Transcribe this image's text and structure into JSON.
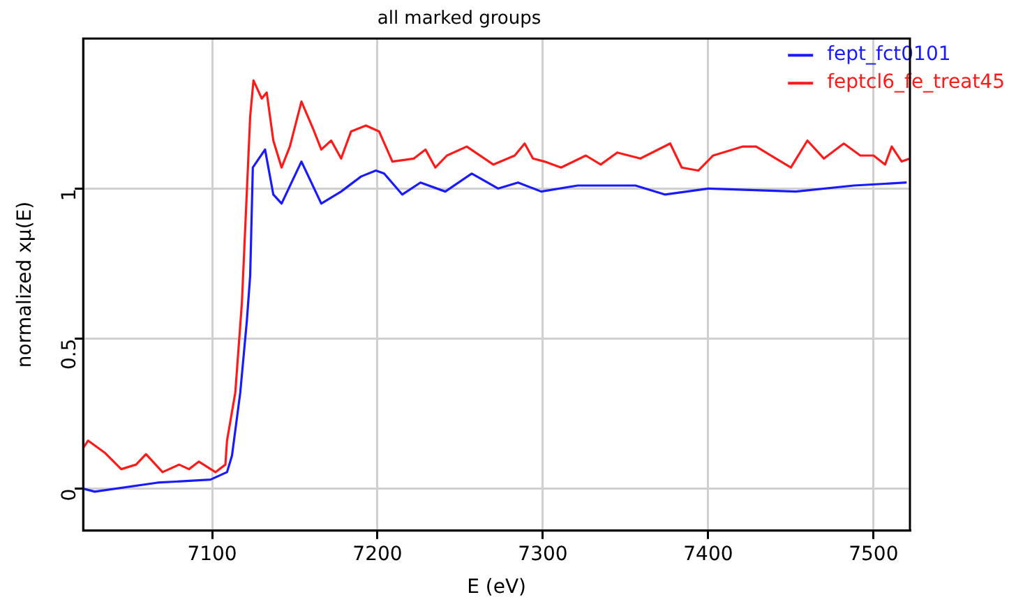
{
  "chart_data": {
    "type": "line",
    "title": "all marked groups",
    "xlabel": "E (eV)",
    "ylabel": "normalized xμ(E)",
    "xlim": [
      7022,
      7522
    ],
    "xticks": [
      7100,
      7200,
      7300,
      7400,
      7500
    ],
    "ylim": [
      -0.14,
      1.5
    ],
    "yticks": [
      0,
      0.5,
      1
    ],
    "grid": true,
    "legend": "top right",
    "marker": "none",
    "line_style": "solid",
    "series": [
      {
        "name": "fept_fct0101",
        "color": "#1a1aff",
        "x": [
          7022,
          7029,
          7067,
          7099,
          7109,
          7112,
          7117,
          7121,
          7123,
          7124.6,
          7132,
          7137,
          7142,
          7154,
          7166,
          7178,
          7190,
          7199,
          7204,
          7215,
          7226,
          7241,
          7257,
          7273,
          7285,
          7299,
          7321,
          7356,
          7374,
          7400,
          7453,
          7488,
          7520
        ],
        "values": [
          0,
          -0.01,
          0.02,
          0.03,
          0.055,
          0.11,
          0.32,
          0.56,
          0.71,
          1.07,
          1.13,
          0.98,
          0.95,
          1.09,
          0.95,
          0.99,
          1.04,
          1.06,
          1.05,
          0.98,
          1.02,
          0.99,
          1.05,
          1.0,
          1.02,
          0.99,
          1.01,
          1.01,
          0.98,
          1.0,
          0.99,
          1.01,
          1.02
        ]
      },
      {
        "name": "feptcl6_fe_treat45",
        "color": "#ff1a1a",
        "x": [
          7022,
          7025,
          7035,
          7045,
          7054,
          7060,
          7070,
          7080,
          7086,
          7092,
          7102,
          7108,
          7109,
          7114,
          7118,
          7123,
          7125,
          7130,
          7133,
          7137,
          7142,
          7147,
          7154,
          7161,
          7166,
          7172,
          7178,
          7184,
          7193,
          7201,
          7209,
          7222,
          7229,
          7235,
          7242,
          7254,
          7270,
          7283,
          7289,
          7294,
          7301,
          7311,
          7326,
          7335,
          7345,
          7359,
          7377,
          7384,
          7394,
          7403,
          7421,
          7429,
          7441,
          7450,
          7460,
          7470,
          7482,
          7492,
          7500,
          7507,
          7511,
          7517,
          7522
        ],
        "values": [
          0.135,
          0.16,
          0.12,
          0.065,
          0.08,
          0.115,
          0.055,
          0.08,
          0.065,
          0.09,
          0.055,
          0.08,
          0.16,
          0.32,
          0.62,
          1.24,
          1.36,
          1.3,
          1.32,
          1.16,
          1.07,
          1.14,
          1.29,
          1.2,
          1.13,
          1.16,
          1.1,
          1.19,
          1.21,
          1.19,
          1.09,
          1.1,
          1.13,
          1.07,
          1.11,
          1.14,
          1.08,
          1.11,
          1.15,
          1.1,
          1.09,
          1.07,
          1.11,
          1.08,
          1.12,
          1.1,
          1.15,
          1.07,
          1.06,
          1.11,
          1.14,
          1.14,
          1.1,
          1.07,
          1.16,
          1.1,
          1.15,
          1.11,
          1.11,
          1.08,
          1.14,
          1.09,
          1.1
        ]
      }
    ]
  }
}
